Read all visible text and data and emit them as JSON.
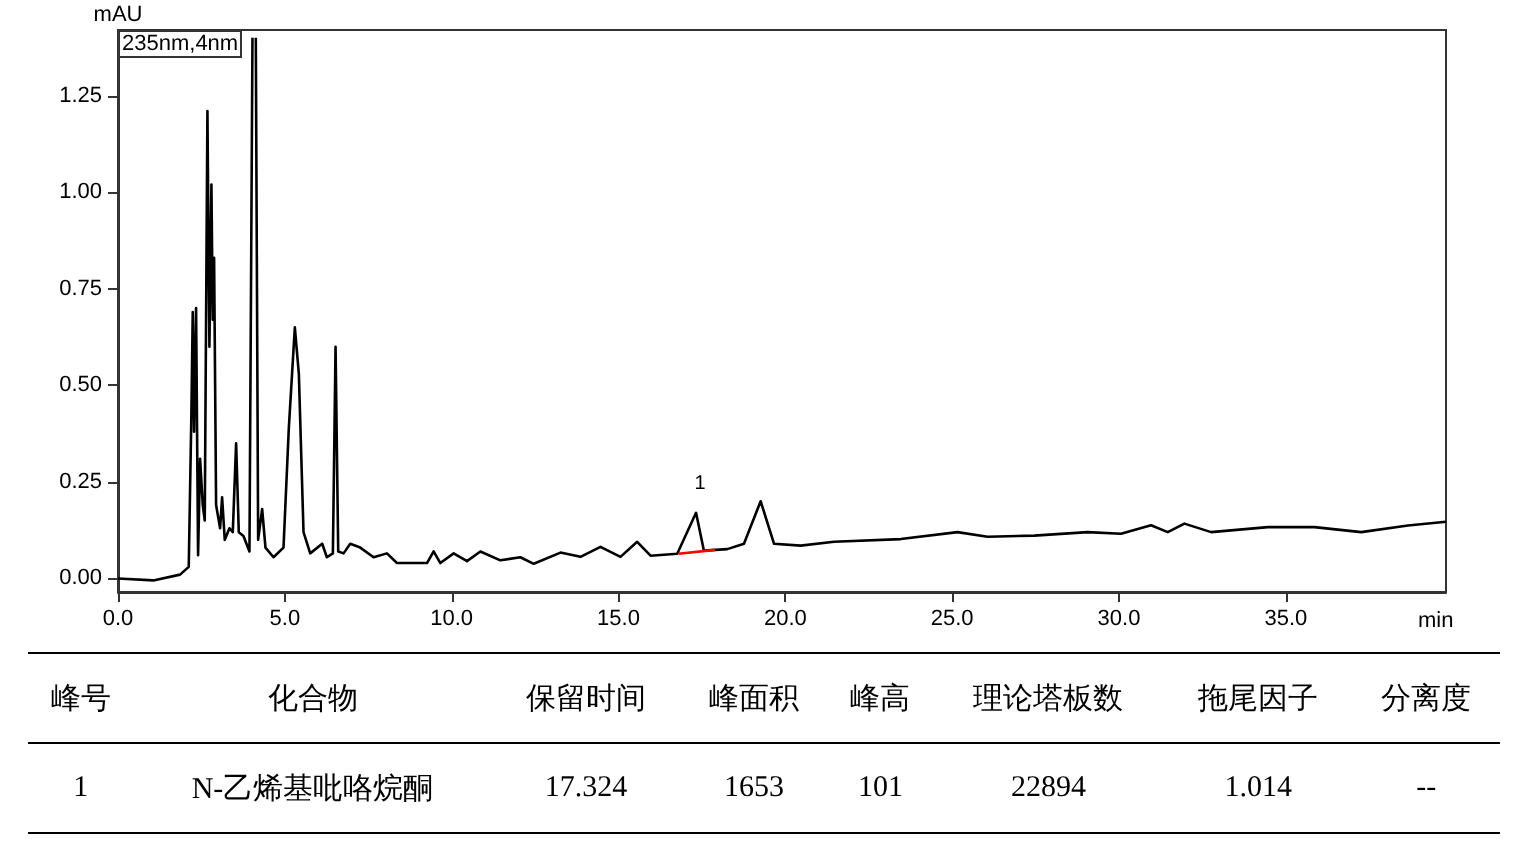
{
  "chart_data": {
    "type": "line",
    "xlabel": "min",
    "ylabel": "mAU",
    "xlim": [
      0,
      39.8
    ],
    "ylim": [
      -0.035,
      1.42
    ],
    "xticks": [
      {
        "value": 0,
        "label": "0.0"
      },
      {
        "value": 5,
        "label": "5.0"
      },
      {
        "value": 10,
        "label": "10.0"
      },
      {
        "value": 15,
        "label": "15.0"
      },
      {
        "value": 20,
        "label": "20.0"
      },
      {
        "value": 25,
        "label": "25.0"
      },
      {
        "value": 30,
        "label": "30.0"
      },
      {
        "value": 35,
        "label": "35.0"
      }
    ],
    "yticks": [
      {
        "value": 0,
        "label": "0.00"
      },
      {
        "value": 0.25,
        "label": "0.25"
      },
      {
        "value": 0.5,
        "label": "0.50"
      },
      {
        "value": 0.75,
        "label": "0.75"
      },
      {
        "value": 1,
        "label": "1.00"
      },
      {
        "value": 1.25,
        "label": "1.25"
      }
    ],
    "grid": false,
    "marker": "none",
    "line_style": "solid",
    "series": [
      {
        "color": "#000000",
        "x": [
          0,
          1.06,
          1.86,
          2.12,
          2.2,
          2.24,
          2.28,
          2.34,
          2.4,
          2.46,
          2.54,
          2.6,
          2.68,
          2.74,
          2.8,
          2.84,
          2.88,
          2.94,
          3.06,
          3.12,
          3.2,
          3.34,
          3.44,
          3.54,
          3.62,
          3.76,
          3.94,
          4.03,
          4.08,
          4.13,
          4.2,
          4.32,
          4.42,
          4.66,
          4.96,
          5.12,
          5.3,
          5.42,
          5.56,
          5.76,
          6.12,
          6.26,
          6.44,
          6.52,
          6.6,
          6.76,
          6.96,
          7.26,
          7.66,
          8.06,
          8.36,
          9.26,
          9.46,
          9.66,
          10.06,
          10.46,
          10.86,
          11.46,
          12.06,
          12.46,
          13.26,
          13.86,
          14.46,
          15.06,
          15.56,
          15.96,
          16.76,
          17.324,
          17.56,
          18.26,
          18.76,
          19.26,
          19.66,
          20.46,
          21.46,
          23.46,
          25.16,
          26.06,
          27.46,
          29.06,
          30.06,
          30.96,
          31.46,
          31.96,
          32.76,
          34.46,
          35.86,
          37.26,
          38.66,
          39.8
        ],
        "values": [
          0,
          -0.005,
          0.01,
          0.03,
          0.43,
          0.69,
          0.38,
          0.7,
          0.06,
          0.31,
          0.19,
          0.15,
          1.21,
          0.6,
          1.02,
          0.67,
          0.83,
          0.19,
          0.13,
          0.21,
          0.1,
          0.13,
          0.12,
          0.35,
          0.12,
          0.11,
          0.07,
          1.4,
          null,
          1.4,
          0.1,
          0.18,
          0.08,
          0.055,
          0.08,
          0.39,
          0.65,
          0.53,
          0.12,
          0.065,
          0.09,
          0.055,
          0.065,
          0.6,
          0.07,
          0.065,
          0.09,
          0.08,
          0.055,
          0.065,
          0.04,
          0.04,
          0.07,
          0.04,
          0.065,
          0.045,
          0.07,
          0.047,
          0.055,
          0.038,
          0.067,
          0.056,
          0.082,
          0.056,
          0.095,
          0.059,
          0.064,
          0.17,
          0.072,
          0.076,
          0.09,
          0.2,
          0.09,
          0.085,
          0.095,
          0.102,
          0.12,
          0.108,
          0.111,
          0.12,
          0.116,
          0.138,
          0.12,
          0.142,
          0.12,
          0.133,
          0.133,
          0.12,
          0.137,
          0.147
        ]
      },
      {
        "color": "#ff0000",
        "x": [
          16.8,
          17.9
        ],
        "values": [
          0.064,
          0.074
        ]
      }
    ],
    "annotations": [
      "235nm,4nm",
      {
        "text": "1",
        "x": 17.324,
        "y": 0.17
      },
      "峰号",
      "化合物",
      "保留时间",
      "峰面积",
      "峰高",
      "理论塔板数",
      "拖尾因子",
      "分离度",
      "1",
      "N-乙烯基吡咯烷酮",
      "17.324",
      "1653",
      "101",
      "22894",
      "1.014",
      "--"
    ]
  }
}
